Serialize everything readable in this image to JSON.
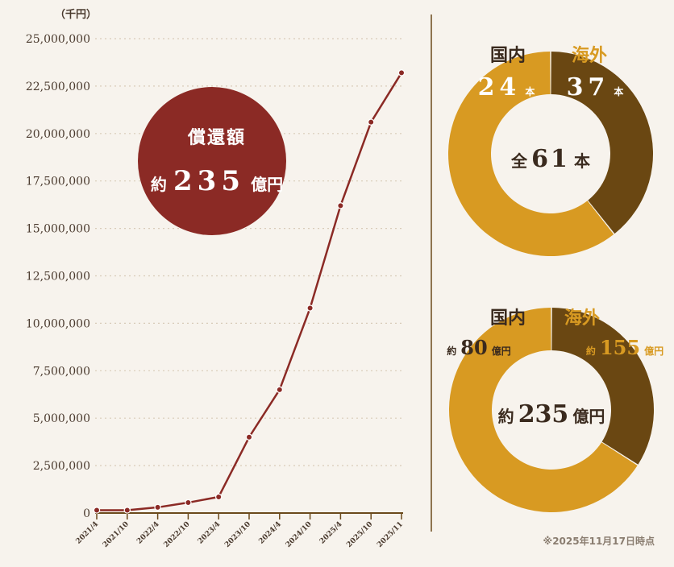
{
  "colors": {
    "background": "#f7f3ed",
    "line": "#8b2a25",
    "bubble": "#8b2a25",
    "domestic": "#6a4712",
    "overseas": "#d89a22",
    "axis": "#6b4a1c",
    "grid": "#d8cbb8"
  },
  "chart_data": [
    {
      "type": "line",
      "unit_label": "（千円）",
      "x": [
        "2021/4",
        "2021/10",
        "2022/4",
        "2022/10",
        "2023/4",
        "2023/10",
        "2024/4",
        "2024/10",
        "2025/4",
        "2025/10",
        "2025/11"
      ],
      "y_ticks": [
        "0",
        "2,500,000",
        "5,000,000",
        "7,500,000",
        "10,000,000",
        "12,500,000",
        "15,000,000",
        "17,500,000",
        "20,000,000",
        "22,500,000",
        "25,000,000"
      ],
      "ylim": [
        0,
        25000000
      ],
      "grid": true,
      "series": [
        {
          "values": [
            150000,
            150000,
            300000,
            550000,
            850000,
            4000000,
            6500000,
            10800000,
            16200000,
            20600000,
            23200000
          ]
        }
      ],
      "annotation": {
        "title": "償還額",
        "prefix": "約",
        "value": "235",
        "suffix": "億円"
      }
    },
    {
      "type": "pie",
      "style": "donut",
      "center": {
        "prefix": "全",
        "value": "61",
        "suffix": "本"
      },
      "slices": [
        {
          "label": "国内",
          "value": 24,
          "display": "24",
          "unit": "本",
          "color": "#6a4712"
        },
        {
          "label": "海外",
          "value": 37,
          "display": "37",
          "unit": "本",
          "color": "#d89a22"
        }
      ]
    },
    {
      "type": "pie",
      "style": "donut",
      "center": {
        "prefix": "約",
        "value": "235",
        "suffix": "億円"
      },
      "slices": [
        {
          "label": "国内",
          "value": 80,
          "display": "80",
          "prefix": "約",
          "unit": "億円",
          "color": "#6a4712"
        },
        {
          "label": "海外",
          "value": 155,
          "display": "155",
          "prefix": "約",
          "unit": "億円",
          "color": "#d89a22"
        }
      ]
    }
  ],
  "footnote": "※2025年11月17日時点"
}
